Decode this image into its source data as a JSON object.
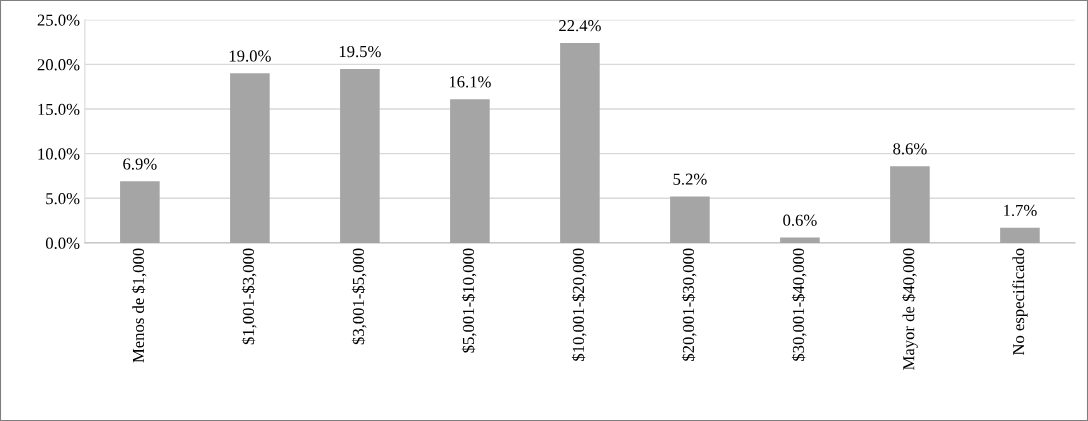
{
  "chart_data": {
    "type": "bar",
    "categories": [
      "Menos de $1,000",
      "$1,001-$3,000",
      "$3,001-$5,000",
      "$5,001-$10,000",
      "$10,001-$20,000",
      "$20,001-$30,000",
      "$30,001-$40,000",
      "Mayor de $40,000",
      "No especificado"
    ],
    "values": [
      6.9,
      19.0,
      19.5,
      16.1,
      22.4,
      5.2,
      0.6,
      8.6,
      1.7
    ],
    "value_labels": [
      "6.9%",
      "19.0%",
      "19.5%",
      "16.1%",
      "22.4%",
      "5.2%",
      "0.6%",
      "8.6%",
      "1.7%"
    ],
    "color": "#a5a5a5",
    "ylim": [
      0,
      25
    ],
    "yticks": [
      {
        "value": 0,
        "label": "0.0%"
      },
      {
        "value": 5,
        "label": "5.0%"
      },
      {
        "value": 10,
        "label": "10.0%"
      },
      {
        "value": 15,
        "label": "15.0%"
      },
      {
        "value": 20,
        "label": "20.0%"
      },
      {
        "value": 25,
        "label": "25.0%"
      }
    ],
    "grid": "y",
    "legend": false
  }
}
